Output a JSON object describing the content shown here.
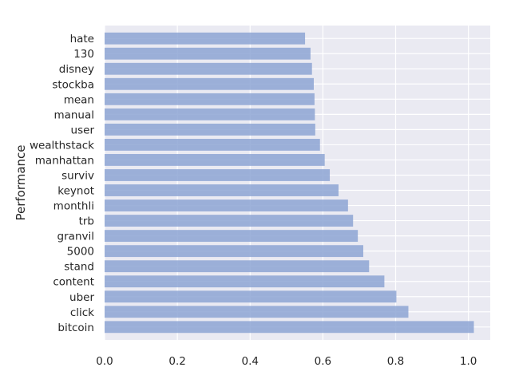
{
  "chart_data": {
    "type": "bar",
    "orientation": "horizontal",
    "title": "",
    "xlabel": "",
    "ylabel": "Performance",
    "categories": [
      "bitcoin",
      "click",
      "uber",
      "content",
      "stand",
      "5000",
      "granvil",
      "trb",
      "monthli",
      "keynot",
      "surviv",
      "manhattan",
      "wealthstack",
      "user",
      "manual",
      "mean",
      "stockba",
      "disney",
      "130",
      "hate"
    ],
    "values": [
      1.015,
      0.835,
      0.802,
      0.769,
      0.727,
      0.711,
      0.696,
      0.683,
      0.669,
      0.643,
      0.619,
      0.605,
      0.592,
      0.579,
      0.578,
      0.577,
      0.575,
      0.57,
      0.566,
      0.551
    ],
    "xlim": [
      0,
      1.06
    ],
    "xticks": [
      "0.0",
      "0.2",
      "0.4",
      "0.6",
      "0.8",
      "1.0"
    ],
    "grid": true,
    "colors": {
      "bar": "#8da4d4",
      "background": "#eaeaf2",
      "grid": "#ffffff",
      "text": "#262626"
    }
  }
}
